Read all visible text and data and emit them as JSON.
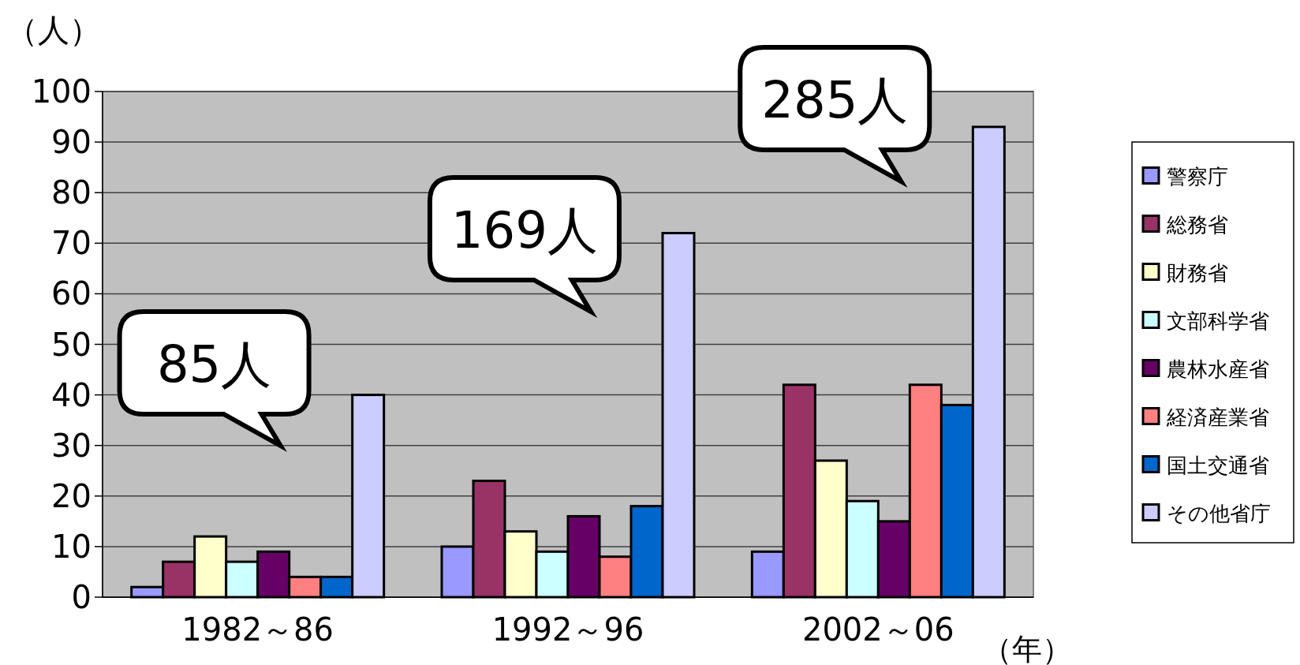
{
  "chart_data": {
    "type": "bar",
    "ylabel": "（人）",
    "xlabel": "（年）",
    "categories": [
      "1982～86",
      "1992～96",
      "2002～06"
    ],
    "series": [
      {
        "name": "警察庁",
        "color": "#9999ff",
        "values": [
          2,
          10,
          9
        ]
      },
      {
        "name": "総務省",
        "color": "#993366",
        "values": [
          7,
          23,
          42
        ]
      },
      {
        "name": "財務省",
        "color": "#ffffcc",
        "values": [
          12,
          13,
          27
        ]
      },
      {
        "name": "文部科学省",
        "color": "#ccffff",
        "values": [
          7,
          9,
          19
        ]
      },
      {
        "name": "農林水産省",
        "color": "#660066",
        "values": [
          9,
          16,
          15
        ]
      },
      {
        "name": "経済産業省",
        "color": "#ff8080",
        "values": [
          4,
          8,
          42
        ]
      },
      {
        "name": "国土交通省",
        "color": "#0066cc",
        "values": [
          4,
          18,
          38
        ]
      },
      {
        "name": "その他省庁",
        "color": "#ccccff",
        "values": [
          40,
          72,
          93
        ]
      }
    ],
    "ylim": [
      0,
      100
    ],
    "yticks": [
      0,
      10,
      20,
      30,
      40,
      50,
      60,
      70,
      80,
      90,
      100
    ],
    "grid": "y",
    "legend": "right",
    "annotations": [
      "85人",
      "169人",
      "285人"
    ]
  }
}
